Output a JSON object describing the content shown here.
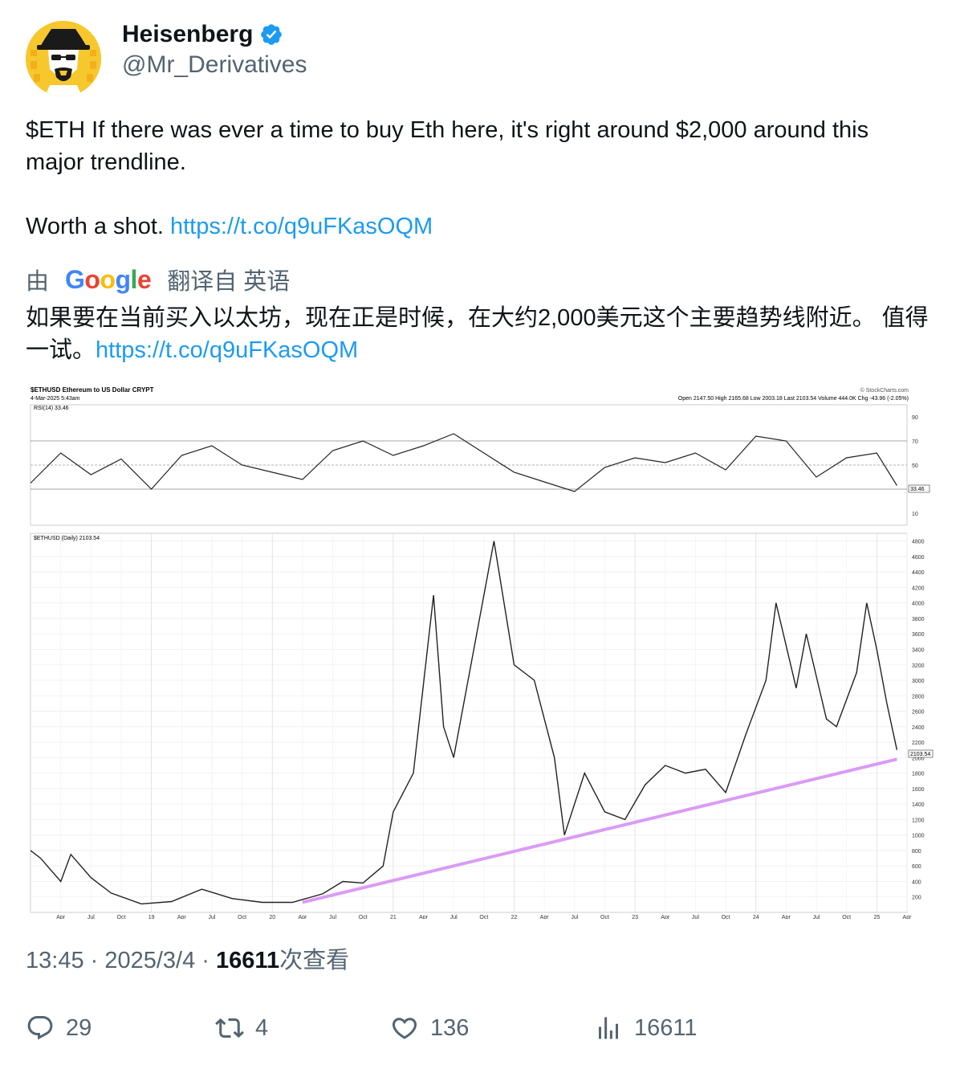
{
  "user": {
    "display_name": "Heisenberg",
    "handle": "@Mr_Derivatives"
  },
  "tweet": {
    "line1": "$ETH If there was ever a time to buy Eth here, it's right around $2,000 around this major trendline.",
    "line2_text": "Worth a shot.",
    "link": "https://t.co/q9uFKasOQM"
  },
  "translation": {
    "prefix": "由",
    "provider": "Google",
    "suffix": "翻译自 英语",
    "text": "如果要在当前买入以太坊，现在正是时候，在大约2,000美元这个主要趋势线附近。 值得一试。",
    "link": "https://t.co/q9uFKasOQM"
  },
  "meta": {
    "time": "13:45",
    "date": "2025/3/4",
    "views_count": "16611",
    "views_label": "次查看"
  },
  "actions": {
    "replies": "29",
    "retweets": "4",
    "likes": "136",
    "views": "16611"
  },
  "chart_data": [
    {
      "type": "line",
      "title": "$ETHUSD Ethereum to US Dollar CRYPT",
      "subtitle": "4-Mar-2025 5:43am",
      "source": "© StockCharts.com",
      "ohlc_label": "Open 2147.50 High 2165.68 Low 2003.18 Last 2103.54 Volume 444.0K Chg -43.96 (-2.05%)",
      "indicator": "RSI(14) 33.46",
      "ylim": [
        10,
        90
      ],
      "y_ticks": [
        10,
        30,
        50,
        70,
        90
      ],
      "reference_lines": [
        30,
        50,
        70
      ],
      "last_value_label": "33.46",
      "x": [
        "2018-01",
        "2018-04",
        "2018-07",
        "2018-10",
        "2019-01",
        "2019-04",
        "2019-07",
        "2019-10",
        "2020-01",
        "2020-04",
        "2020-07",
        "2020-10",
        "2021-01",
        "2021-04",
        "2021-07",
        "2021-10",
        "2022-01",
        "2022-04",
        "2022-07",
        "2022-10",
        "2023-01",
        "2023-04",
        "2023-07",
        "2023-10",
        "2024-01",
        "2024-04",
        "2024-07",
        "2024-10",
        "2025-01",
        "2025-03"
      ],
      "values": [
        35,
        60,
        42,
        55,
        30,
        58,
        66,
        50,
        44,
        38,
        62,
        70,
        58,
        66,
        76,
        60,
        44,
        36,
        28,
        48,
        56,
        52,
        60,
        46,
        74,
        70,
        40,
        56,
        60,
        33
      ]
    },
    {
      "type": "line",
      "title": "$ETHUSD (Daily) 2103.54",
      "last_value_label": "2103.54",
      "ylim": [
        0,
        4900
      ],
      "y_ticks": [
        200,
        400,
        600,
        800,
        1000,
        1200,
        1400,
        1600,
        1800,
        2000,
        2200,
        2400,
        2600,
        2800,
        3000,
        3200,
        3400,
        3600,
        3800,
        4000,
        4200,
        4400,
        4600,
        4800
      ],
      "x_tick_labels": [
        "Apr",
        "Jul",
        "Oct",
        "19",
        "Apr",
        "Jul",
        "Oct",
        "20",
        "Apr",
        "Jul",
        "Oct",
        "21",
        "Apr",
        "Jul",
        "Oct",
        "22",
        "Apr",
        "Jul",
        "Oct",
        "23",
        "Apr",
        "Jul",
        "Oct",
        "24",
        "Apr",
        "Jul",
        "Oct",
        "25",
        "Apr"
      ],
      "series": [
        {
          "x": [
            "2018-01",
            "2018-02",
            "2018-04",
            "2018-05",
            "2018-07",
            "2018-09",
            "2018-12",
            "2019-03",
            "2019-06",
            "2019-09",
            "2019-12",
            "2020-03",
            "2020-06",
            "2020-08",
            "2020-10",
            "2020-12",
            "2021-01",
            "2021-03",
            "2021-05",
            "2021-06",
            "2021-07",
            "2021-09",
            "2021-11",
            "2022-01",
            "2022-03",
            "2022-05",
            "2022-06",
            "2022-08",
            "2022-10",
            "2022-12",
            "2023-02",
            "2023-04",
            "2023-06",
            "2023-08",
            "2023-10",
            "2023-12",
            "2024-02",
            "2024-03",
            "2024-05",
            "2024-06",
            "2024-08",
            "2024-09",
            "2024-11",
            "2024-12",
            "2025-01",
            "2025-02",
            "2025-03"
          ],
          "values": [
            800,
            700,
            400,
            750,
            450,
            250,
            110,
            140,
            300,
            180,
            130,
            130,
            240,
            400,
            380,
            600,
            1300,
            1800,
            4100,
            2400,
            2000,
            3400,
            4800,
            3200,
            3000,
            2000,
            1000,
            1800,
            1300,
            1200,
            1650,
            1900,
            1800,
            1850,
            1550,
            2300,
            3000,
            4000,
            2900,
            3600,
            2500,
            2400,
            3100,
            4000,
            3400,
            2700,
            2100
          ]
        }
      ],
      "trendline": {
        "from": [
          "2020-04",
          130
        ],
        "to": [
          "2025-03",
          1980
        ]
      }
    }
  ]
}
